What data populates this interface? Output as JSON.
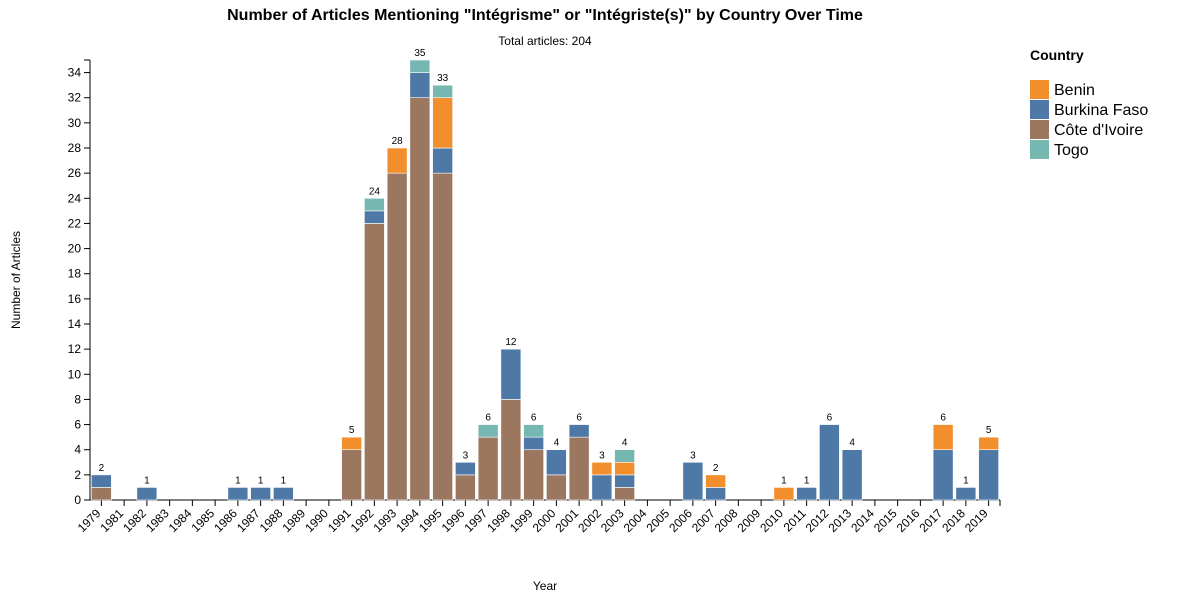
{
  "chart_data": {
    "type": "bar",
    "stacked": true,
    "title": "Number of Articles Mentioning \"Intégrisme\" or \"Intégriste(s)\" by Country Over Time",
    "subtitle": "Total articles: 204",
    "xlabel": "Year",
    "ylabel": "Number of Articles",
    "ylim": [
      0,
      35
    ],
    "yticks": [
      0,
      2,
      4,
      6,
      8,
      10,
      12,
      14,
      16,
      18,
      20,
      22,
      24,
      26,
      28,
      30,
      32,
      34
    ],
    "legend_title": "Country",
    "legend_position": "right",
    "categories": [
      "1979",
      "1981",
      "1982",
      "1983",
      "1984",
      "1985",
      "1986",
      "1987",
      "1988",
      "1989",
      "1990",
      "1991",
      "1992",
      "1993",
      "1994",
      "1995",
      "1996",
      "1997",
      "1998",
      "1999",
      "2000",
      "2001",
      "2002",
      "2003",
      "2004",
      "2005",
      "2006",
      "2007",
      "2008",
      "2009",
      "2010",
      "2011",
      "2012",
      "2013",
      "2014",
      "2015",
      "2016",
      "2017",
      "2018",
      "2019"
    ],
    "series": [
      {
        "name": "Côte d'Ivoire",
        "color": "#9c7760",
        "values": [
          1,
          0,
          0,
          0,
          0,
          0,
          0,
          0,
          0,
          0,
          0,
          4,
          22,
          26,
          32,
          26,
          2,
          5,
          8,
          4,
          2,
          5,
          0,
          1,
          0,
          0,
          0,
          0,
          0,
          0,
          0,
          0,
          0,
          0,
          0,
          0,
          0,
          0,
          0,
          0
        ]
      },
      {
        "name": "Burkina Faso",
        "color": "#4e79a7",
        "values": [
          1,
          0,
          1,
          0,
          0,
          0,
          1,
          1,
          1,
          0,
          0,
          0,
          1,
          0,
          2,
          2,
          1,
          0,
          4,
          1,
          2,
          1,
          2,
          1,
          0,
          0,
          3,
          1,
          0,
          0,
          0,
          1,
          6,
          4,
          0,
          0,
          0,
          4,
          1,
          4
        ]
      },
      {
        "name": "Benin",
        "color": "#f28e2b",
        "values": [
          0,
          0,
          0,
          0,
          0,
          0,
          0,
          0,
          0,
          0,
          0,
          1,
          0,
          2,
          0,
          4,
          0,
          0,
          0,
          0,
          0,
          0,
          1,
          1,
          0,
          0,
          0,
          1,
          0,
          0,
          1,
          0,
          0,
          0,
          0,
          0,
          0,
          2,
          0,
          1
        ]
      },
      {
        "name": "Togo",
        "color": "#76b7b2",
        "values": [
          0,
          0,
          0,
          0,
          0,
          0,
          0,
          0,
          0,
          0,
          0,
          0,
          1,
          0,
          1,
          1,
          0,
          1,
          0,
          1,
          0,
          0,
          0,
          1,
          0,
          0,
          0,
          0,
          0,
          0,
          0,
          0,
          0,
          0,
          0,
          0,
          0,
          0,
          0,
          0
        ]
      }
    ],
    "totals": [
      2,
      0,
      1,
      0,
      0,
      0,
      1,
      1,
      1,
      0,
      0,
      5,
      24,
      28,
      35,
      33,
      3,
      6,
      12,
      6,
      4,
      6,
      3,
      4,
      0,
      0,
      3,
      2,
      0,
      0,
      1,
      1,
      6,
      4,
      0,
      0,
      0,
      6,
      1,
      5
    ],
    "legend_order": [
      "Benin",
      "Burkina Faso",
      "Côte d'Ivoire",
      "Togo"
    ]
  }
}
